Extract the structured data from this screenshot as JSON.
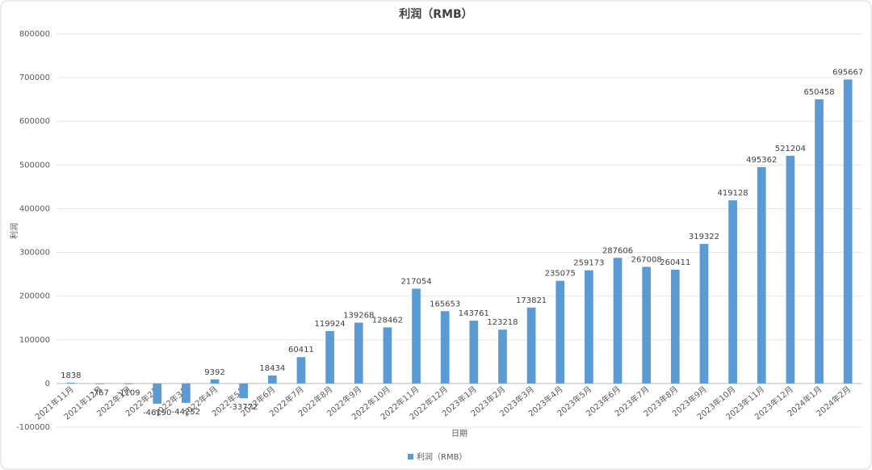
{
  "chart_data": {
    "type": "bar",
    "title": "利润（RMB）",
    "x_label": "日期",
    "y_label": "利润",
    "categories": [
      "2021年11月",
      "2021年12月",
      "2022年1月",
      "2022年2月",
      "2022年3月",
      "2022年4月",
      "2022年5月",
      "2022年6月",
      "2022年7月",
      "2022年8月",
      "2022年9月",
      "2022年10月",
      "2022年11月",
      "2022年12月",
      "2023年1月",
      "2023年2月",
      "2023年3月",
      "2023年4月",
      "2023年5月",
      "2023年6月",
      "2023年7月",
      "2023年8月",
      "2023年9月",
      "2023年10月",
      "2023年11月",
      "2023年12月",
      "2024年1月",
      "2024年2月"
    ],
    "series": [
      {
        "name": "利润（RMB）",
        "color": "#5b9bd5",
        "values": [
          1838,
          -767,
          -1109,
          -46190,
          -44252,
          9392,
          -33772,
          18434,
          60411,
          119924,
          139268,
          128462,
          217054,
          165653,
          143761,
          123218,
          173821,
          235075,
          259173,
          287606,
          267008,
          260411,
          319322,
          419128,
          495362,
          521204,
          650458,
          695667
        ]
      }
    ],
    "ylim": [
      -100000,
      800000
    ],
    "yticks": [
      -100000,
      0,
      100000,
      200000,
      300000,
      400000,
      500000,
      600000,
      700000,
      800000
    ],
    "grid": true,
    "legend": "bottom"
  }
}
